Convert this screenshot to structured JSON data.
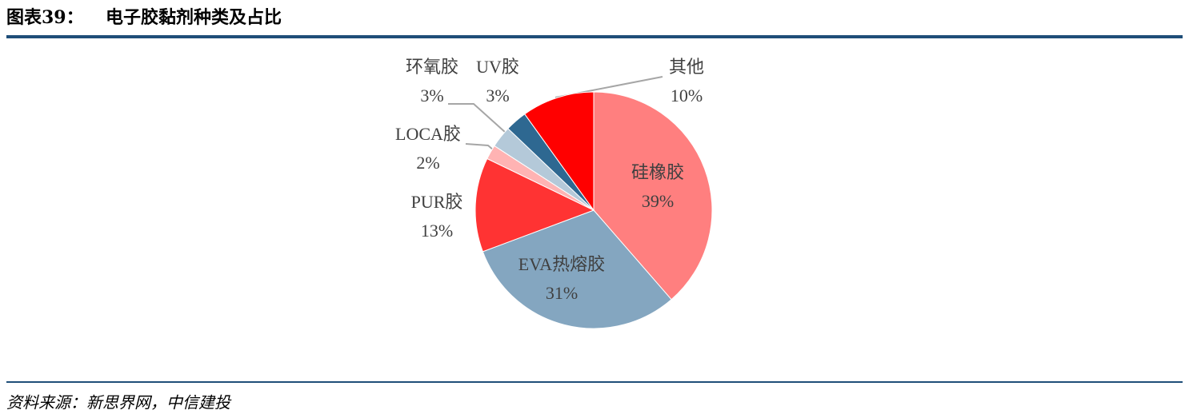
{
  "header": {
    "figure_label": "图表39：",
    "title": "电子胶黏剂种类及占比"
  },
  "chart_data": {
    "type": "pie",
    "categories": [
      "硅橡胶",
      "EVA热熔胶",
      "PUR胶",
      "LOCA胶",
      "环氧胶",
      "UV胶",
      "其他"
    ],
    "values": [
      39,
      31,
      13,
      2,
      3,
      3,
      10
    ],
    "value_labels": [
      "39%",
      "31%",
      "13%",
      "2%",
      "3%",
      "3%",
      "10%"
    ],
    "colors": [
      "#ff7f7f",
      "#84a6c0",
      "#ff3333",
      "#ffb3b3",
      "#b4c9d9",
      "#2e6891",
      "#ff0000"
    ]
  },
  "footer": {
    "source": "资料来源：新思界网，中信建投"
  }
}
